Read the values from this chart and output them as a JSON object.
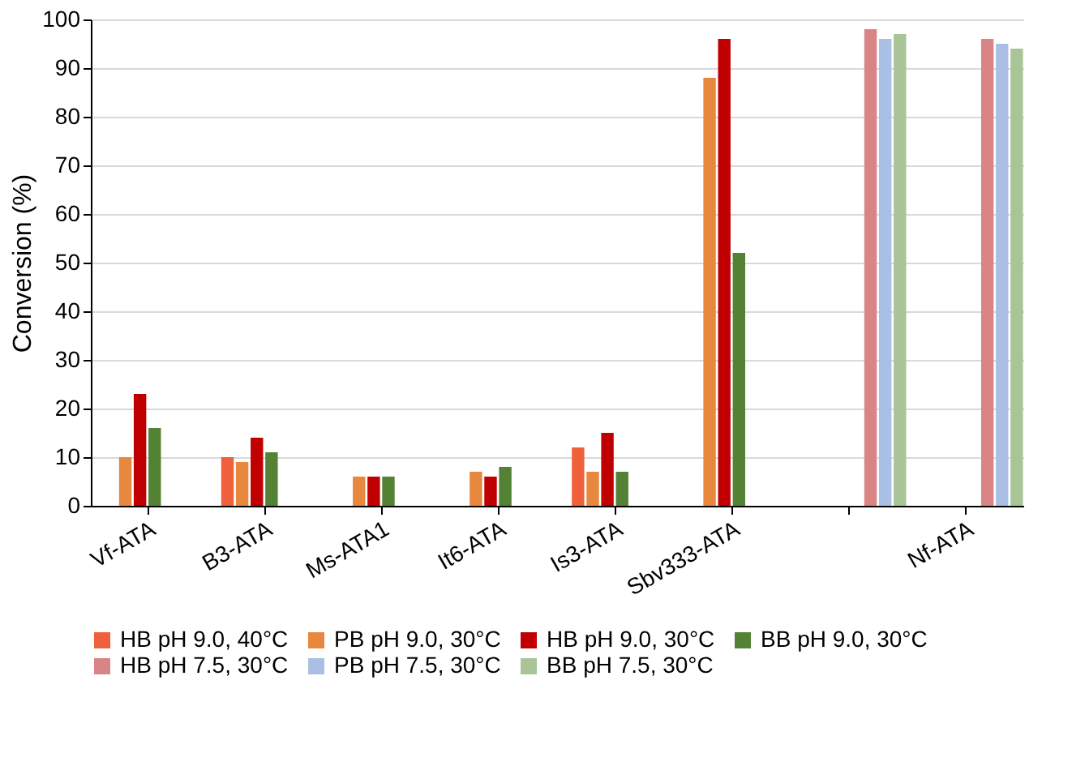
{
  "chart_data": {
    "type": "bar",
    "ylabel": "Conversion (%)",
    "categories": [
      "Vf-ATA",
      "B3-ATA",
      "Ms-ATA1",
      "It6-ATA",
      "Is3-ATA",
      "Sbv333-ATA",
      null,
      "Nf-ATA"
    ],
    "series": [
      {
        "name": "HB pH 9.0, 40°C",
        "color": "#f0603a",
        "values": [
          null,
          10,
          null,
          null,
          12,
          null,
          null,
          null
        ]
      },
      {
        "name": "PB pH 9.0, 30°C",
        "color": "#e8873e",
        "values": [
          10,
          9,
          6,
          7,
          7,
          88,
          null,
          null
        ]
      },
      {
        "name": "HB pH 9.0, 30°C",
        "color": "#c00000",
        "values": [
          23,
          14,
          6,
          6,
          15,
          96,
          null,
          null
        ]
      },
      {
        "name": "BB pH 9.0, 30°C",
        "color": "#548235",
        "values": [
          16,
          11,
          6,
          8,
          7,
          52,
          null,
          null
        ]
      },
      {
        "name": "HB pH 7.5, 30°C",
        "color": "#d98585",
        "values": [
          null,
          null,
          null,
          null,
          null,
          null,
          98,
          96
        ]
      },
      {
        "name": "PB pH 7.5, 30°C",
        "color": "#a9bfe3",
        "values": [
          null,
          null,
          null,
          null,
          null,
          null,
          96,
          95
        ]
      },
      {
        "name": "BB pH 7.5, 30°C",
        "color": "#a9c497",
        "values": [
          null,
          null,
          null,
          null,
          null,
          null,
          97,
          94
        ]
      }
    ],
    "ylim": [
      0,
      100
    ],
    "yticks": [
      0,
      10,
      20,
      30,
      40,
      50,
      60,
      70,
      80,
      90,
      100
    ],
    "grid": "y",
    "legend": "bottom"
  }
}
